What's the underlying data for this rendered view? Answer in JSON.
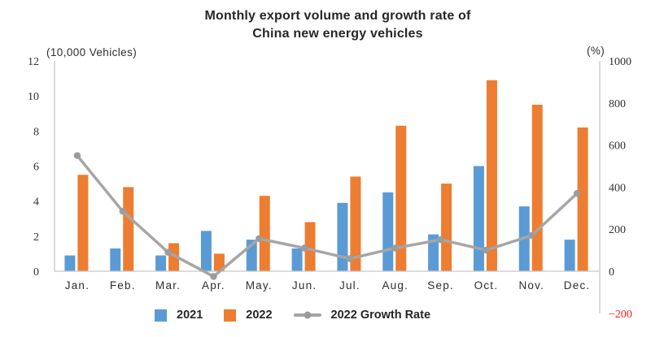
{
  "title": {
    "line1": "Monthly export volume and growth rate of",
    "line2": "China new energy vehicles"
  },
  "left_axis": {
    "label": "(10,000 Vehicles)",
    "ticks": [
      0,
      2,
      4,
      6,
      8,
      10,
      12
    ],
    "max": 12
  },
  "right_axis": {
    "label": "(%)",
    "ticks": [
      -200,
      0,
      200,
      400,
      600,
      800,
      1000
    ],
    "min": -200,
    "max": 1000,
    "negative_tick_color": "#fe1a1a"
  },
  "chart_data": {
    "type": "bar",
    "subtype": "grouped-bar-with-line",
    "title": "Monthly export volume and growth rate of China new energy vehicles",
    "categories": [
      "Jan.",
      "Feb.",
      "Mar.",
      "Apr.",
      "May.",
      "Jun.",
      "Jul.",
      "Aug.",
      "Sep.",
      "Oct.",
      "Nov.",
      "Dec."
    ],
    "series": [
      {
        "name": "2021",
        "type": "bar",
        "axis": "left",
        "color": "#5b9bd5",
        "values": [
          0.9,
          1.3,
          0.9,
          2.3,
          1.8,
          1.3,
          3.9,
          4.5,
          2.1,
          6.0,
          3.7,
          1.8
        ]
      },
      {
        "name": "2022",
        "type": "bar",
        "axis": "left",
        "color": "#ed7d31",
        "values": [
          5.5,
          4.8,
          1.6,
          1.0,
          4.3,
          2.8,
          5.4,
          8.3,
          5.0,
          10.9,
          9.5,
          8.2
        ]
      },
      {
        "name": "2022 Growth Rate",
        "type": "line",
        "axis": "right",
        "color": "#a6a6a6",
        "marker_color": "#9c9c9c",
        "values": [
          550,
          285,
          90,
          -25,
          155,
          110,
          60,
          110,
          150,
          100,
          170,
          370
        ]
      }
    ],
    "left_ylabel": "(10,000 Vehicles)",
    "right_ylabel": "(%)",
    "left_ylim": [
      0,
      12
    ],
    "right_ylim": [
      -200,
      1000
    ],
    "grid": false,
    "legend_position": "bottom"
  },
  "legend": {
    "items": [
      {
        "label": "2021",
        "color": "#5b9bd5",
        "marker": "square"
      },
      {
        "label": "2022",
        "color": "#ed7d31",
        "marker": "square"
      },
      {
        "label": "2022 Growth Rate",
        "color": "#a6a6a6",
        "marker": "line"
      }
    ]
  },
  "colors": {
    "bar_2021": "#5b9bd5",
    "bar_2022": "#ed7d31",
    "growth_line": "#a6a6a6",
    "axis_line": "#c6c6c6",
    "tick_text": "#333333",
    "negative_tick": "#fe1a1a",
    "title_text": "#262626"
  }
}
